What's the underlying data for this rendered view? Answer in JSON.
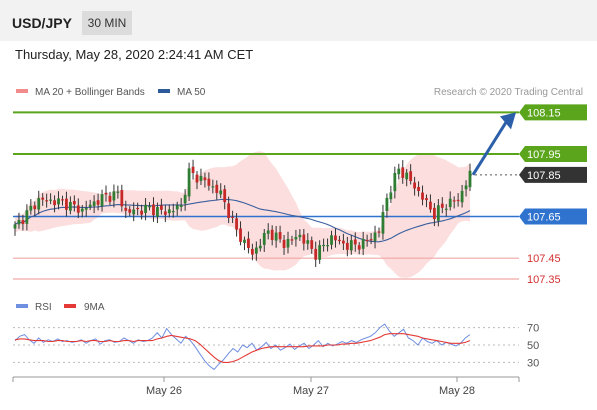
{
  "header": {
    "pair": "USD/JPY",
    "timeframe": "30 MIN",
    "datetime": "Thursday, May 28, 2020 2:24:41 AM CET"
  },
  "legend": {
    "bollinger_label": "MA 20 + Bollinger Bands",
    "ma50_label": "MA 50",
    "credit": "Research © 2020 Trading Central",
    "rsi_label": "RSI",
    "rsi_ma_label": "9MA"
  },
  "colors": {
    "green": "#5aa51c",
    "blue": "#2f73cf",
    "dark": "#333333",
    "red_line": "#f2a6a6",
    "red_text": "#d32f2f",
    "band_fill": "#fbd3d3",
    "candle_up": "#2e7d32",
    "candle_down": "#c62828",
    "arrow": "#2b5faa",
    "ma50": "#3a5f9e",
    "rsi_line": "#6f8fe0",
    "rsi_ma": "#e53935"
  },
  "chart_data": {
    "type": "candlestick",
    "instrument": "USD/JPY",
    "interval": "30 MIN",
    "ylim": [
      107.3,
      108.2
    ],
    "x_ticks": [
      "May 26",
      "May 27",
      "May 28"
    ],
    "levels": [
      {
        "value": 108.15,
        "label": "108.15",
        "style": "green"
      },
      {
        "value": 107.95,
        "label": "107.95",
        "style": "green"
      },
      {
        "value": 107.85,
        "label": "107.85",
        "style": "dark"
      },
      {
        "value": 107.65,
        "label": "107.65",
        "style": "blue"
      },
      {
        "value": 107.45,
        "label": "107.45",
        "style": "red"
      },
      {
        "value": 107.35,
        "label": "107.35",
        "style": "red"
      }
    ],
    "price_path": [
      [
        0,
        107.6
      ],
      [
        6,
        107.73
      ],
      [
        12,
        107.72
      ],
      [
        17,
        107.68
      ],
      [
        22,
        107.74
      ],
      [
        26,
        107.76
      ],
      [
        28,
        107.67
      ],
      [
        34,
        107.69
      ],
      [
        38,
        107.67
      ],
      [
        42,
        107.7
      ],
      [
        44,
        107.86
      ],
      [
        48,
        107.82
      ],
      [
        52,
        107.76
      ],
      [
        56,
        107.58
      ],
      [
        60,
        107.47
      ],
      [
        64,
        107.58
      ],
      [
        68,
        107.52
      ],
      [
        72,
        107.56
      ],
      [
        76,
        107.47
      ],
      [
        80,
        107.55
      ],
      [
        84,
        107.51
      ],
      [
        88,
        107.52
      ],
      [
        92,
        107.58
      ],
      [
        94,
        107.74
      ],
      [
        97,
        107.88
      ],
      [
        100,
        107.82
      ],
      [
        103,
        107.74
      ],
      [
        106,
        107.66
      ],
      [
        109,
        107.71
      ],
      [
        112,
        107.73
      ],
      [
        115,
        107.85
      ]
    ],
    "forecast": {
      "from": 107.85,
      "to": 108.15
    },
    "rsi": {
      "levels": [
        70,
        50,
        30
      ],
      "ylim": [
        20,
        80
      ],
      "values": [
        55,
        60,
        62,
        56,
        52,
        58,
        53,
        56,
        54,
        57,
        54,
        55,
        53,
        54,
        56,
        52,
        55,
        57,
        51,
        55,
        56,
        53,
        54,
        58,
        55,
        52,
        56,
        54,
        55,
        58,
        64,
        58,
        69,
        62,
        57,
        52,
        60,
        55,
        48,
        40,
        32,
        26,
        22,
        28,
        33,
        40,
        46,
        42,
        50,
        47,
        52,
        44,
        48,
        53,
        46,
        50,
        44,
        47,
        51,
        45,
        49,
        52,
        46,
        50,
        55,
        48,
        52,
        49,
        51,
        54,
        52,
        55,
        53,
        56,
        58,
        60,
        64,
        70,
        74,
        66,
        60,
        64,
        68,
        58,
        55,
        50,
        58,
        54,
        52,
        55,
        50,
        53,
        51,
        49,
        52,
        58,
        62
      ],
      "ma9": [
        56,
        57,
        57,
        56,
        55,
        55,
        55,
        54,
        54,
        55,
        55,
        54,
        54,
        54,
        55,
        54,
        55,
        55,
        54,
        54,
        55,
        54,
        54,
        55,
        55,
        54,
        55,
        55,
        55,
        55,
        57,
        58,
        60,
        61,
        60,
        59,
        58,
        57,
        55,
        51,
        46,
        41,
        36,
        32,
        30,
        30,
        31,
        33,
        36,
        39,
        42,
        44,
        46,
        47,
        48,
        48,
        48,
        48,
        48,
        48,
        48,
        48,
        49,
        49,
        49,
        49,
        50,
        50,
        50,
        51,
        51,
        52,
        52,
        53,
        54,
        55,
        57,
        59,
        62,
        63,
        63,
        63,
        63,
        62,
        61,
        60,
        58,
        57,
        56,
        55,
        54,
        53,
        52,
        52,
        52,
        53,
        55
      ]
    }
  }
}
